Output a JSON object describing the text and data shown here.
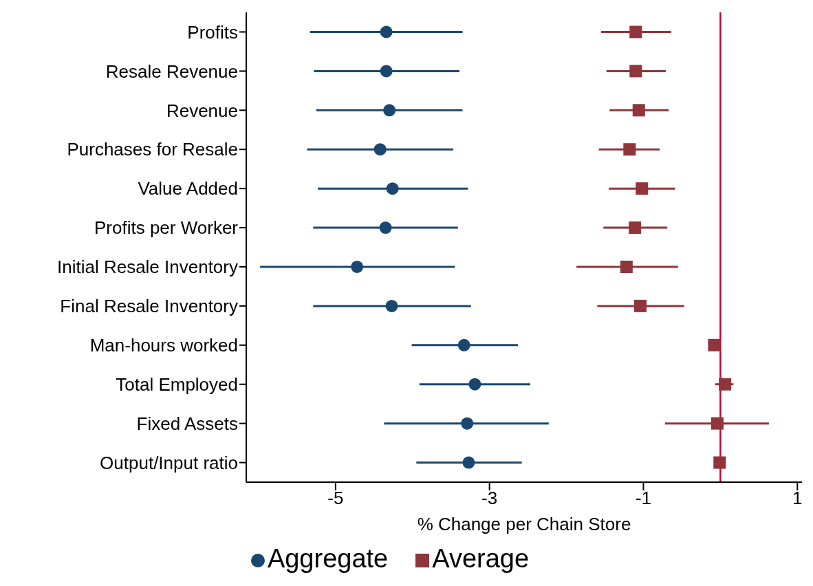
{
  "chart_data": {
    "type": "scatter",
    "xlabel": "% Change per Chain Store",
    "categories": [
      "Profits",
      "Resale Revenue",
      "Revenue",
      "Purchases for Resale",
      "Value Added",
      "Profits per Worker",
      "Initial Resale Inventory",
      "Final Resale Inventory",
      "Man-hours worked",
      "Total Employed",
      "Fixed Assets",
      "Output/Input ratio"
    ],
    "series": [
      {
        "name": "Aggregate",
        "color": "#1a476f",
        "marker": "circle",
        "values": [
          -4.34,
          -4.34,
          -4.3,
          -4.42,
          -4.26,
          -4.35,
          -4.72,
          -4.27,
          -3.33,
          -3.19,
          -3.29,
          -3.27
        ],
        "errors": [
          [
            -5.33,
            -3.35
          ],
          [
            -5.28,
            -3.39
          ],
          [
            -5.25,
            -3.35
          ],
          [
            -5.37,
            -3.47
          ],
          [
            -5.23,
            -3.28
          ],
          [
            -5.29,
            -3.41
          ],
          [
            -5.98,
            -3.45
          ],
          [
            -5.29,
            -3.24
          ],
          [
            -4.01,
            -2.63
          ],
          [
            -3.91,
            -2.47
          ],
          [
            -4.37,
            -2.23
          ],
          [
            -3.95,
            -2.58
          ]
        ]
      },
      {
        "name": "Average",
        "color": "#90353b",
        "marker": "square",
        "values": [
          -1.1,
          -1.1,
          -1.06,
          -1.18,
          -1.02,
          -1.11,
          -1.22,
          -1.04,
          -0.08,
          0.06,
          -0.04,
          -0.01
        ],
        "errors": [
          [
            -1.55,
            -0.64
          ],
          [
            -1.48,
            -0.71
          ],
          [
            -1.44,
            -0.67
          ],
          [
            -1.58,
            -0.79
          ],
          [
            -1.45,
            -0.59
          ],
          [
            -1.52,
            -0.69
          ],
          [
            -1.87,
            -0.55
          ],
          [
            -1.6,
            -0.47
          ],
          [
            -0.14,
            -0.01
          ],
          [
            -0.07,
            0.17
          ],
          [
            -0.72,
            0.63
          ],
          null
        ]
      }
    ],
    "xlim": [
      -6.16,
      1.06
    ],
    "xticks": [
      -5,
      -3,
      -1,
      1
    ],
    "ref_lines": [
      {
        "axis": "x",
        "value": 0,
        "color": "#c10534"
      }
    ],
    "grid": false,
    "legend": "bottom",
    "orientation": "horizontal"
  }
}
